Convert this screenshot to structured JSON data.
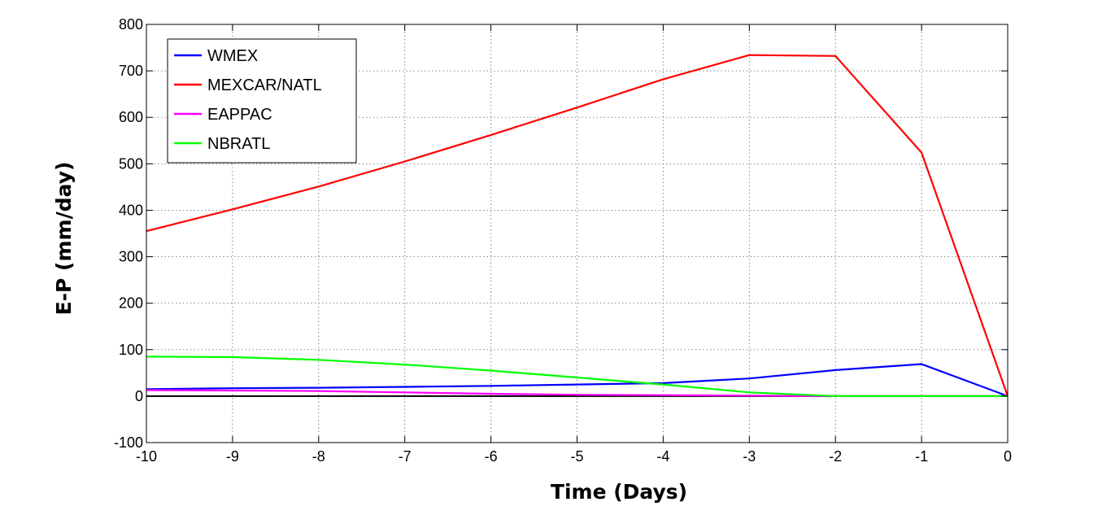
{
  "chart_data": {
    "type": "line",
    "xlabel": "Time (Days)",
    "ylabel": "E-P (mm/day)",
    "xlim": [
      -10,
      0
    ],
    "ylim": [
      -100,
      800
    ],
    "xticks": [
      -10,
      -9,
      -8,
      -7,
      -6,
      -5,
      -4,
      -3,
      -2,
      -1,
      0
    ],
    "yticks": [
      -100,
      0,
      100,
      200,
      300,
      400,
      500,
      600,
      700,
      800
    ],
    "grid": true,
    "legend_position": "top-left",
    "zero_line_color": "#000000",
    "series": [
      {
        "name": "WMEX",
        "color": "#0000ff",
        "points": [
          [
            -10,
            15
          ],
          [
            -9,
            17
          ],
          [
            -8,
            18
          ],
          [
            -7,
            20
          ],
          [
            -6,
            22
          ],
          [
            -5,
            25
          ],
          [
            -4,
            28
          ],
          [
            -3,
            38
          ],
          [
            -2,
            56
          ],
          [
            -1,
            69
          ],
          [
            0,
            0
          ]
        ]
      },
      {
        "name": "MEXCAR/NATL",
        "color": "#ff0000",
        "points": [
          [
            -10,
            355
          ],
          [
            -9,
            402
          ],
          [
            -8,
            451
          ],
          [
            -7,
            505
          ],
          [
            -6,
            562
          ],
          [
            -5,
            621
          ],
          [
            -4,
            682
          ],
          [
            -3,
            734
          ],
          [
            -2,
            732
          ],
          [
            -1,
            524
          ],
          [
            0,
            0
          ]
        ]
      },
      {
        "name": "EAPPAC",
        "color": "#ff00ff",
        "points": [
          [
            -10,
            13
          ],
          [
            -9,
            12
          ],
          [
            -8,
            11
          ],
          [
            -7,
            8
          ],
          [
            -6,
            5
          ],
          [
            -5,
            3
          ],
          [
            -4,
            2
          ],
          [
            -3,
            1
          ],
          [
            -2,
            0
          ],
          [
            -1,
            0
          ],
          [
            0,
            0
          ]
        ]
      },
      {
        "name": "NBRATL",
        "color": "#00ff00",
        "points": [
          [
            -10,
            85
          ],
          [
            -9,
            84
          ],
          [
            -8,
            78
          ],
          [
            -7,
            68
          ],
          [
            -6,
            55
          ],
          [
            -5,
            40
          ],
          [
            -4,
            25
          ],
          [
            -3,
            8
          ],
          [
            -2,
            0
          ],
          [
            -1,
            0
          ],
          [
            0,
            0
          ]
        ]
      }
    ]
  }
}
